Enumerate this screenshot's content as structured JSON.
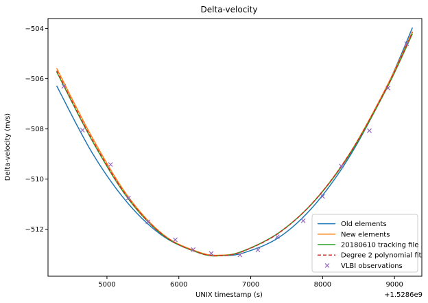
{
  "chart_data": {
    "type": "line",
    "title": "Delta-velocity",
    "xlabel": "UNIX timestamp (s)",
    "ylabel": "Delta-velocity (m/s)",
    "x_offset_label": "+1.5286e9",
    "xlim": [
      4180,
      9380
    ],
    "ylim": [
      -513.87,
      -503.6
    ],
    "xticks": [
      5000,
      6000,
      7000,
      8000,
      9000
    ],
    "yticks": [
      -504,
      -506,
      -508,
      -510,
      -512
    ],
    "grid": false,
    "legend_position": "lower-right",
    "series": [
      {
        "name": "Old elements",
        "style": "solid",
        "color": "#1f77b4",
        "x": [
          4300,
          4800,
          5300,
          5800,
          6300,
          6600,
          6900,
          7400,
          7900,
          8400,
          8900,
          9250
        ],
        "y": [
          -506.28,
          -508.98,
          -510.99,
          -512.31,
          -512.94,
          -513.04,
          -512.94,
          -512.31,
          -510.99,
          -508.98,
          -506.28,
          -503.96
        ]
      },
      {
        "name": "New elements",
        "style": "solid",
        "color": "#ff7f0e",
        "x": [
          4300,
          4800,
          5300,
          5800,
          6300,
          6600,
          6900,
          7400,
          7900,
          8400,
          8900,
          9250
        ],
        "y": [
          -505.58,
          -508.37,
          -510.72,
          -512.25,
          -512.93,
          -513.03,
          -512.86,
          -512.12,
          -510.82,
          -508.87,
          -506.26,
          -504.12
        ]
      },
      {
        "name": "20180610 tracking file",
        "style": "solid",
        "color": "#2ca02c",
        "x": [
          4300,
          4800,
          5300,
          5800,
          6300,
          6600,
          6900,
          7400,
          7900,
          8400,
          8900,
          9250
        ],
        "y": [
          -505.72,
          -508.5,
          -510.8,
          -512.28,
          -512.96,
          -513.05,
          -512.86,
          -512.12,
          -510.83,
          -508.91,
          -506.34,
          -504.2
        ]
      },
      {
        "name": "Degree 2 polynomial fit",
        "style": "dashed",
        "color": "#d62728",
        "x": [
          4300,
          4800,
          5300,
          5800,
          6300,
          6600,
          6900,
          7400,
          7900,
          8400,
          8900,
          9250
        ],
        "y": [
          -505.68,
          -508.46,
          -510.77,
          -512.27,
          -512.95,
          -513.05,
          -512.87,
          -512.13,
          -510.82,
          -508.88,
          -506.3,
          -504.15
        ]
      },
      {
        "name": "VLBI observations",
        "style": "markers",
        "color": "#9467bd",
        "x": [
          4400,
          4660,
          5050,
          5300,
          5570,
          5950,
          6200,
          6450,
          6850,
          7100,
          7370,
          7730,
          8000,
          8260,
          8650,
          8910,
          9170
        ],
        "y": [
          -506.3,
          -508.05,
          -509.42,
          -510.75,
          -511.7,
          -512.42,
          -512.81,
          -512.96,
          -513.02,
          -512.82,
          -512.3,
          -511.66,
          -510.69,
          -509.48,
          -508.07,
          -506.37,
          -504.6
        ]
      }
    ]
  }
}
